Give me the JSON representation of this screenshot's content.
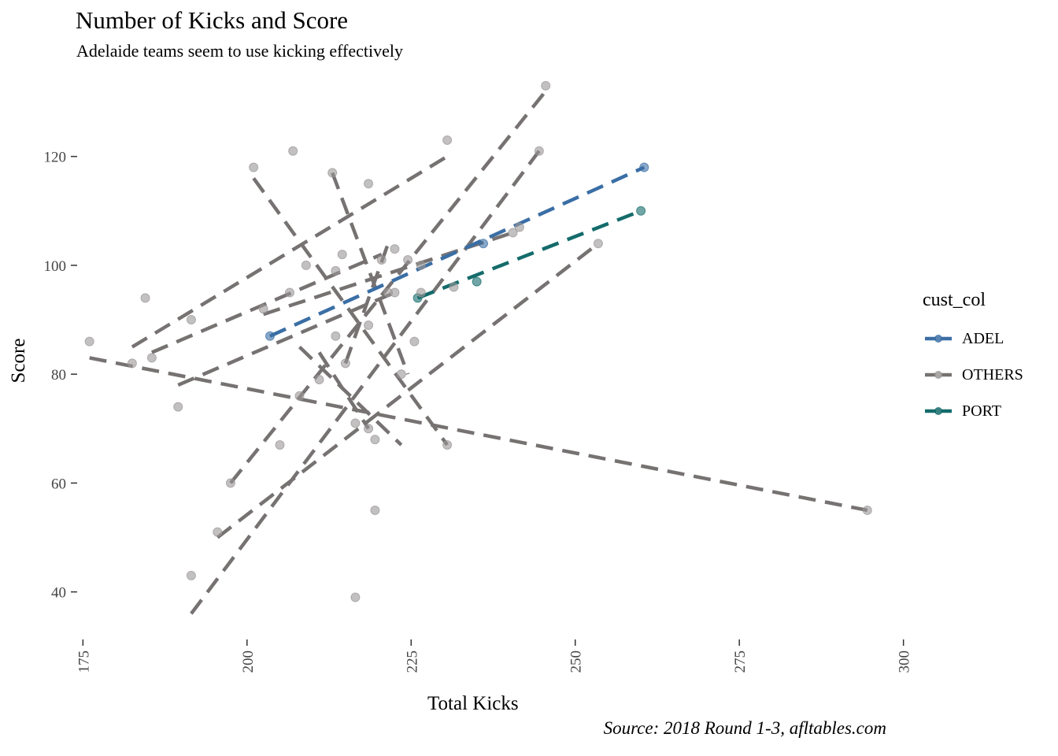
{
  "title": "Number of Kicks and Score",
  "subtitle": "Adelaide teams seem to use kicking effectively",
  "caption": "Source: 2018 Round 1-3, afltables.com",
  "chart_data": {
    "type": "scatter",
    "xlabel": "Total Kicks",
    "ylabel": "Score",
    "xlim": [
      174,
      301
    ],
    "ylim": [
      33,
      135
    ],
    "x_ticks": [
      "175",
      "200",
      "225",
      "250",
      "275",
      "300"
    ],
    "y_ticks": [
      "40",
      "60",
      "80",
      "100",
      "120"
    ],
    "grid": false,
    "legend": {
      "title": "cust_col",
      "position": "right",
      "entries": [
        "ADEL",
        "OTHERS",
        "PORT"
      ]
    },
    "colors": {
      "ADEL": "#3a6ea5",
      "OTHERS": "#777272",
      "PORT": "#146b6b"
    },
    "series": [
      {
        "name": "ADEL",
        "points": [
          [
            203.5,
            87
          ],
          [
            236,
            104
          ],
          [
            260.5,
            118
          ]
        ]
      },
      {
        "name": "PORT",
        "points": [
          [
            226,
            94
          ],
          [
            235,
            97
          ],
          [
            260,
            110
          ]
        ]
      },
      {
        "name": "OTHERS",
        "points": [
          [
            176,
            86
          ],
          [
            182.5,
            82
          ],
          [
            184.5,
            94
          ],
          [
            185.5,
            83
          ],
          [
            189.5,
            74
          ],
          [
            191.5,
            90
          ],
          [
            191.5,
            43
          ],
          [
            195.5,
            51
          ],
          [
            197.5,
            60
          ],
          [
            201,
            118
          ],
          [
            202.5,
            92
          ],
          [
            205,
            67
          ],
          [
            206.5,
            95
          ],
          [
            207,
            121
          ],
          [
            208,
            76
          ],
          [
            209,
            100
          ],
          [
            211,
            79
          ],
          [
            213,
            117
          ],
          [
            213.5,
            99
          ],
          [
            213.5,
            87
          ],
          [
            214.5,
            102
          ],
          [
            215,
            82
          ],
          [
            216.5,
            71
          ],
          [
            216.5,
            39
          ],
          [
            218.5,
            115
          ],
          [
            218.5,
            89
          ],
          [
            218.5,
            70
          ],
          [
            219.5,
            68
          ],
          [
            219.5,
            55
          ],
          [
            220.5,
            101
          ],
          [
            221.5,
            95
          ],
          [
            222.5,
            95
          ],
          [
            222.5,
            103
          ],
          [
            223.5,
            80
          ],
          [
            224.5,
            101
          ],
          [
            225.5,
            86
          ],
          [
            226.5,
            95
          ],
          [
            226.5,
            100
          ],
          [
            230.5,
            123
          ],
          [
            230.5,
            67
          ],
          [
            231.5,
            96
          ],
          [
            240.5,
            106
          ],
          [
            241.5,
            107
          ],
          [
            244.5,
            121
          ],
          [
            245.5,
            133
          ],
          [
            253.5,
            104
          ],
          [
            294.5,
            55
          ]
        ]
      }
    ],
    "trend_lines": [
      {
        "name": "ADEL",
        "from": [
          203.5,
          87
        ],
        "to": [
          260.5,
          118
        ]
      },
      {
        "name": "PORT",
        "from": [
          226,
          94
        ],
        "to": [
          260,
          110
        ]
      },
      {
        "name": "OTHERS",
        "from": [
          176,
          83
        ],
        "to": [
          294.5,
          55
        ]
      },
      {
        "name": "OTHERS",
        "from": [
          182.5,
          85
        ],
        "to": [
          230.5,
          120
        ]
      },
      {
        "name": "OTHERS",
        "from": [
          185.5,
          84
        ],
        "to": [
          220.5,
          102
        ]
      },
      {
        "name": "OTHERS",
        "from": [
          201,
          116
        ],
        "to": [
          230.5,
          67
        ]
      },
      {
        "name": "OTHERS",
        "from": [
          197.5,
          60
        ],
        "to": [
          245.5,
          132
        ]
      },
      {
        "name": "OTHERS",
        "from": [
          195.5,
          50
        ],
        "to": [
          253.5,
          104
        ]
      },
      {
        "name": "OTHERS",
        "from": [
          191.5,
          36
        ],
        "to": [
          244.5,
          121
        ]
      },
      {
        "name": "OTHERS",
        "from": [
          213,
          117
        ],
        "to": [
          224.5,
          80
        ]
      },
      {
        "name": "OTHERS",
        "from": [
          189.5,
          78
        ],
        "to": [
          222.5,
          95
        ]
      },
      {
        "name": "OTHERS",
        "from": [
          202.5,
          91
        ],
        "to": [
          240.5,
          106
        ]
      },
      {
        "name": "OTHERS",
        "from": [
          208,
          85
        ],
        "to": [
          223.5,
          67
        ]
      },
      {
        "name": "OTHERS",
        "from": [
          211,
          84
        ],
        "to": [
          218.5,
          70
        ]
      },
      {
        "name": "OTHERS",
        "from": [
          215,
          82
        ],
        "to": [
          221.5,
          104
        ]
      }
    ]
  }
}
